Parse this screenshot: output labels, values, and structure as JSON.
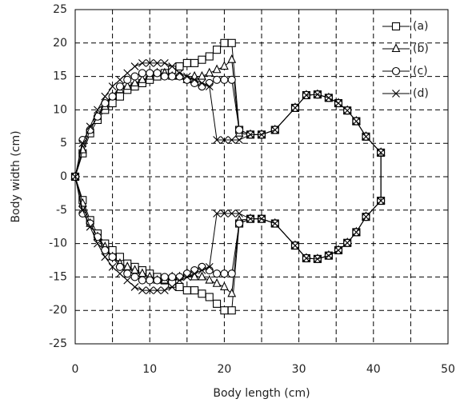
{
  "chart_data": {
    "type": "line",
    "xlabel": "Body length (cm)",
    "ylabel": "Body width (cm)",
    "x": [
      0,
      1,
      2,
      3,
      4,
      5,
      6,
      7,
      8,
      9,
      10,
      11,
      12,
      13,
      14,
      15,
      16,
      17,
      18,
      19,
      20,
      21,
      22,
      23.5,
      25,
      26.8,
      29.5,
      31,
      32.5,
      34,
      35.3,
      36.5,
      37.7,
      39,
      41,
      41,
      39,
      37.7,
      36.5,
      35.3,
      34,
      32.5,
      31,
      29.5,
      26.8,
      25,
      23.5,
      22,
      21,
      20,
      19,
      18,
      17,
      16,
      15,
      14,
      13,
      12,
      11,
      10,
      9,
      8,
      7,
      6,
      5,
      4,
      3,
      2,
      1,
      0
    ],
    "series": [
      {
        "name": "(a)",
        "marker": "square",
        "color": "#000000",
        "values": [
          0,
          3.5,
          6.5,
          8.5,
          10,
          11,
          12,
          13,
          13.5,
          14,
          14.5,
          15,
          15.5,
          16,
          16.5,
          17,
          17,
          17.5,
          18,
          19,
          20,
          20,
          7,
          6.3,
          6.3,
          7,
          10.3,
          12.2,
          12.3,
          11.8,
          11,
          9.9,
          8.3,
          6,
          3.6,
          -3.6,
          -6,
          -8.3,
          -9.9,
          -11,
          -11.8,
          -12.3,
          -12.2,
          -10.3,
          -7,
          -6.3,
          -6.3,
          -7,
          -20,
          -20,
          -19,
          -18,
          -17.5,
          -17,
          -17,
          -16.5,
          -16,
          -15.5,
          -15,
          -14.5,
          -14,
          -13.5,
          -13,
          -12,
          -11,
          -10,
          -8.5,
          -6.5,
          -3.5,
          0
        ]
      },
      {
        "name": "(b)",
        "marker": "triangle",
        "color": "#000000",
        "values": [
          0,
          4,
          7,
          9,
          10.5,
          12,
          13,
          13.5,
          14,
          14.5,
          15,
          15.5,
          15.5,
          15,
          15,
          14.5,
          15,
          15,
          15.5,
          16,
          16.5,
          17.5,
          6.5,
          6.3,
          6.3,
          7,
          10.3,
          12.2,
          12.3,
          11.8,
          11,
          9.9,
          8.3,
          6,
          3.6,
          -3.6,
          -6,
          -8.3,
          -9.9,
          -11,
          -11.8,
          -12.3,
          -12.2,
          -10.3,
          -7,
          -6.3,
          -6.3,
          -6.5,
          -17.5,
          -16.5,
          -16,
          -15.5,
          -15,
          -15,
          -14.5,
          -15,
          -15,
          -15.5,
          -15.5,
          -15,
          -14.5,
          -14,
          -13.5,
          -13,
          -12,
          -10.5,
          -9,
          -7,
          -4,
          0
        ]
      },
      {
        "name": "(c)",
        "marker": "circle",
        "color": "#000000",
        "values": [
          0,
          5.5,
          7,
          9,
          11,
          12,
          13.5,
          14.5,
          15,
          15.5,
          15.5,
          15.5,
          15,
          15,
          15,
          14.5,
          14,
          13.5,
          14,
          14.5,
          14.5,
          14.5,
          7,
          6.3,
          6.3,
          7,
          10.3,
          12.2,
          12.3,
          11.8,
          11,
          9.9,
          8.3,
          6,
          3.6,
          -3.6,
          -6,
          -8.3,
          -9.9,
          -11,
          -11.8,
          -12.3,
          -12.2,
          -10.3,
          -7,
          -6.3,
          -6.3,
          -7,
          -14.5,
          -14.5,
          -14.5,
          -14,
          -13.5,
          -14,
          -14.5,
          -15,
          -15,
          -15,
          -15.5,
          -15.5,
          -15.5,
          -15,
          -14.5,
          -13.5,
          -12,
          -11,
          -9,
          -7,
          -5.5,
          0
        ]
      },
      {
        "name": "(d)",
        "marker": "cross",
        "color": "#000000",
        "values": [
          0,
          5,
          7.5,
          10,
          12,
          13.5,
          14.5,
          15.5,
          16.5,
          17,
          17,
          17,
          17,
          16.5,
          15.5,
          15,
          14.5,
          14,
          13.5,
          5.5,
          5.5,
          5.5,
          5.5,
          6.3,
          6.3,
          7,
          10.3,
          12.2,
          12.3,
          11.8,
          11,
          9.9,
          8.3,
          6,
          3.6,
          -3.6,
          -6,
          -8.3,
          -9.9,
          -11,
          -11.8,
          -12.3,
          -12.2,
          -10.3,
          -7,
          -6.3,
          -6.3,
          -5.5,
          -5.5,
          -5.5,
          -5.5,
          -13.5,
          -14,
          -14.5,
          -15,
          -15.5,
          -16.5,
          -17,
          -17,
          -17,
          -17,
          -16.5,
          -15.5,
          -14.5,
          -13.5,
          -12,
          -10,
          -7.5,
          -5,
          0
        ]
      }
    ],
    "xlim": [
      0,
      50
    ],
    "ylim": [
      -25,
      25
    ],
    "xticks": [
      0,
      10,
      20,
      30,
      40,
      50
    ],
    "xgrid_minor": [
      5,
      15,
      25,
      35,
      45
    ],
    "yticks": [
      -25,
      -20,
      -15,
      -10,
      -5,
      0,
      5,
      10,
      15,
      20,
      25
    ],
    "grid": true,
    "legend": "upper right"
  }
}
